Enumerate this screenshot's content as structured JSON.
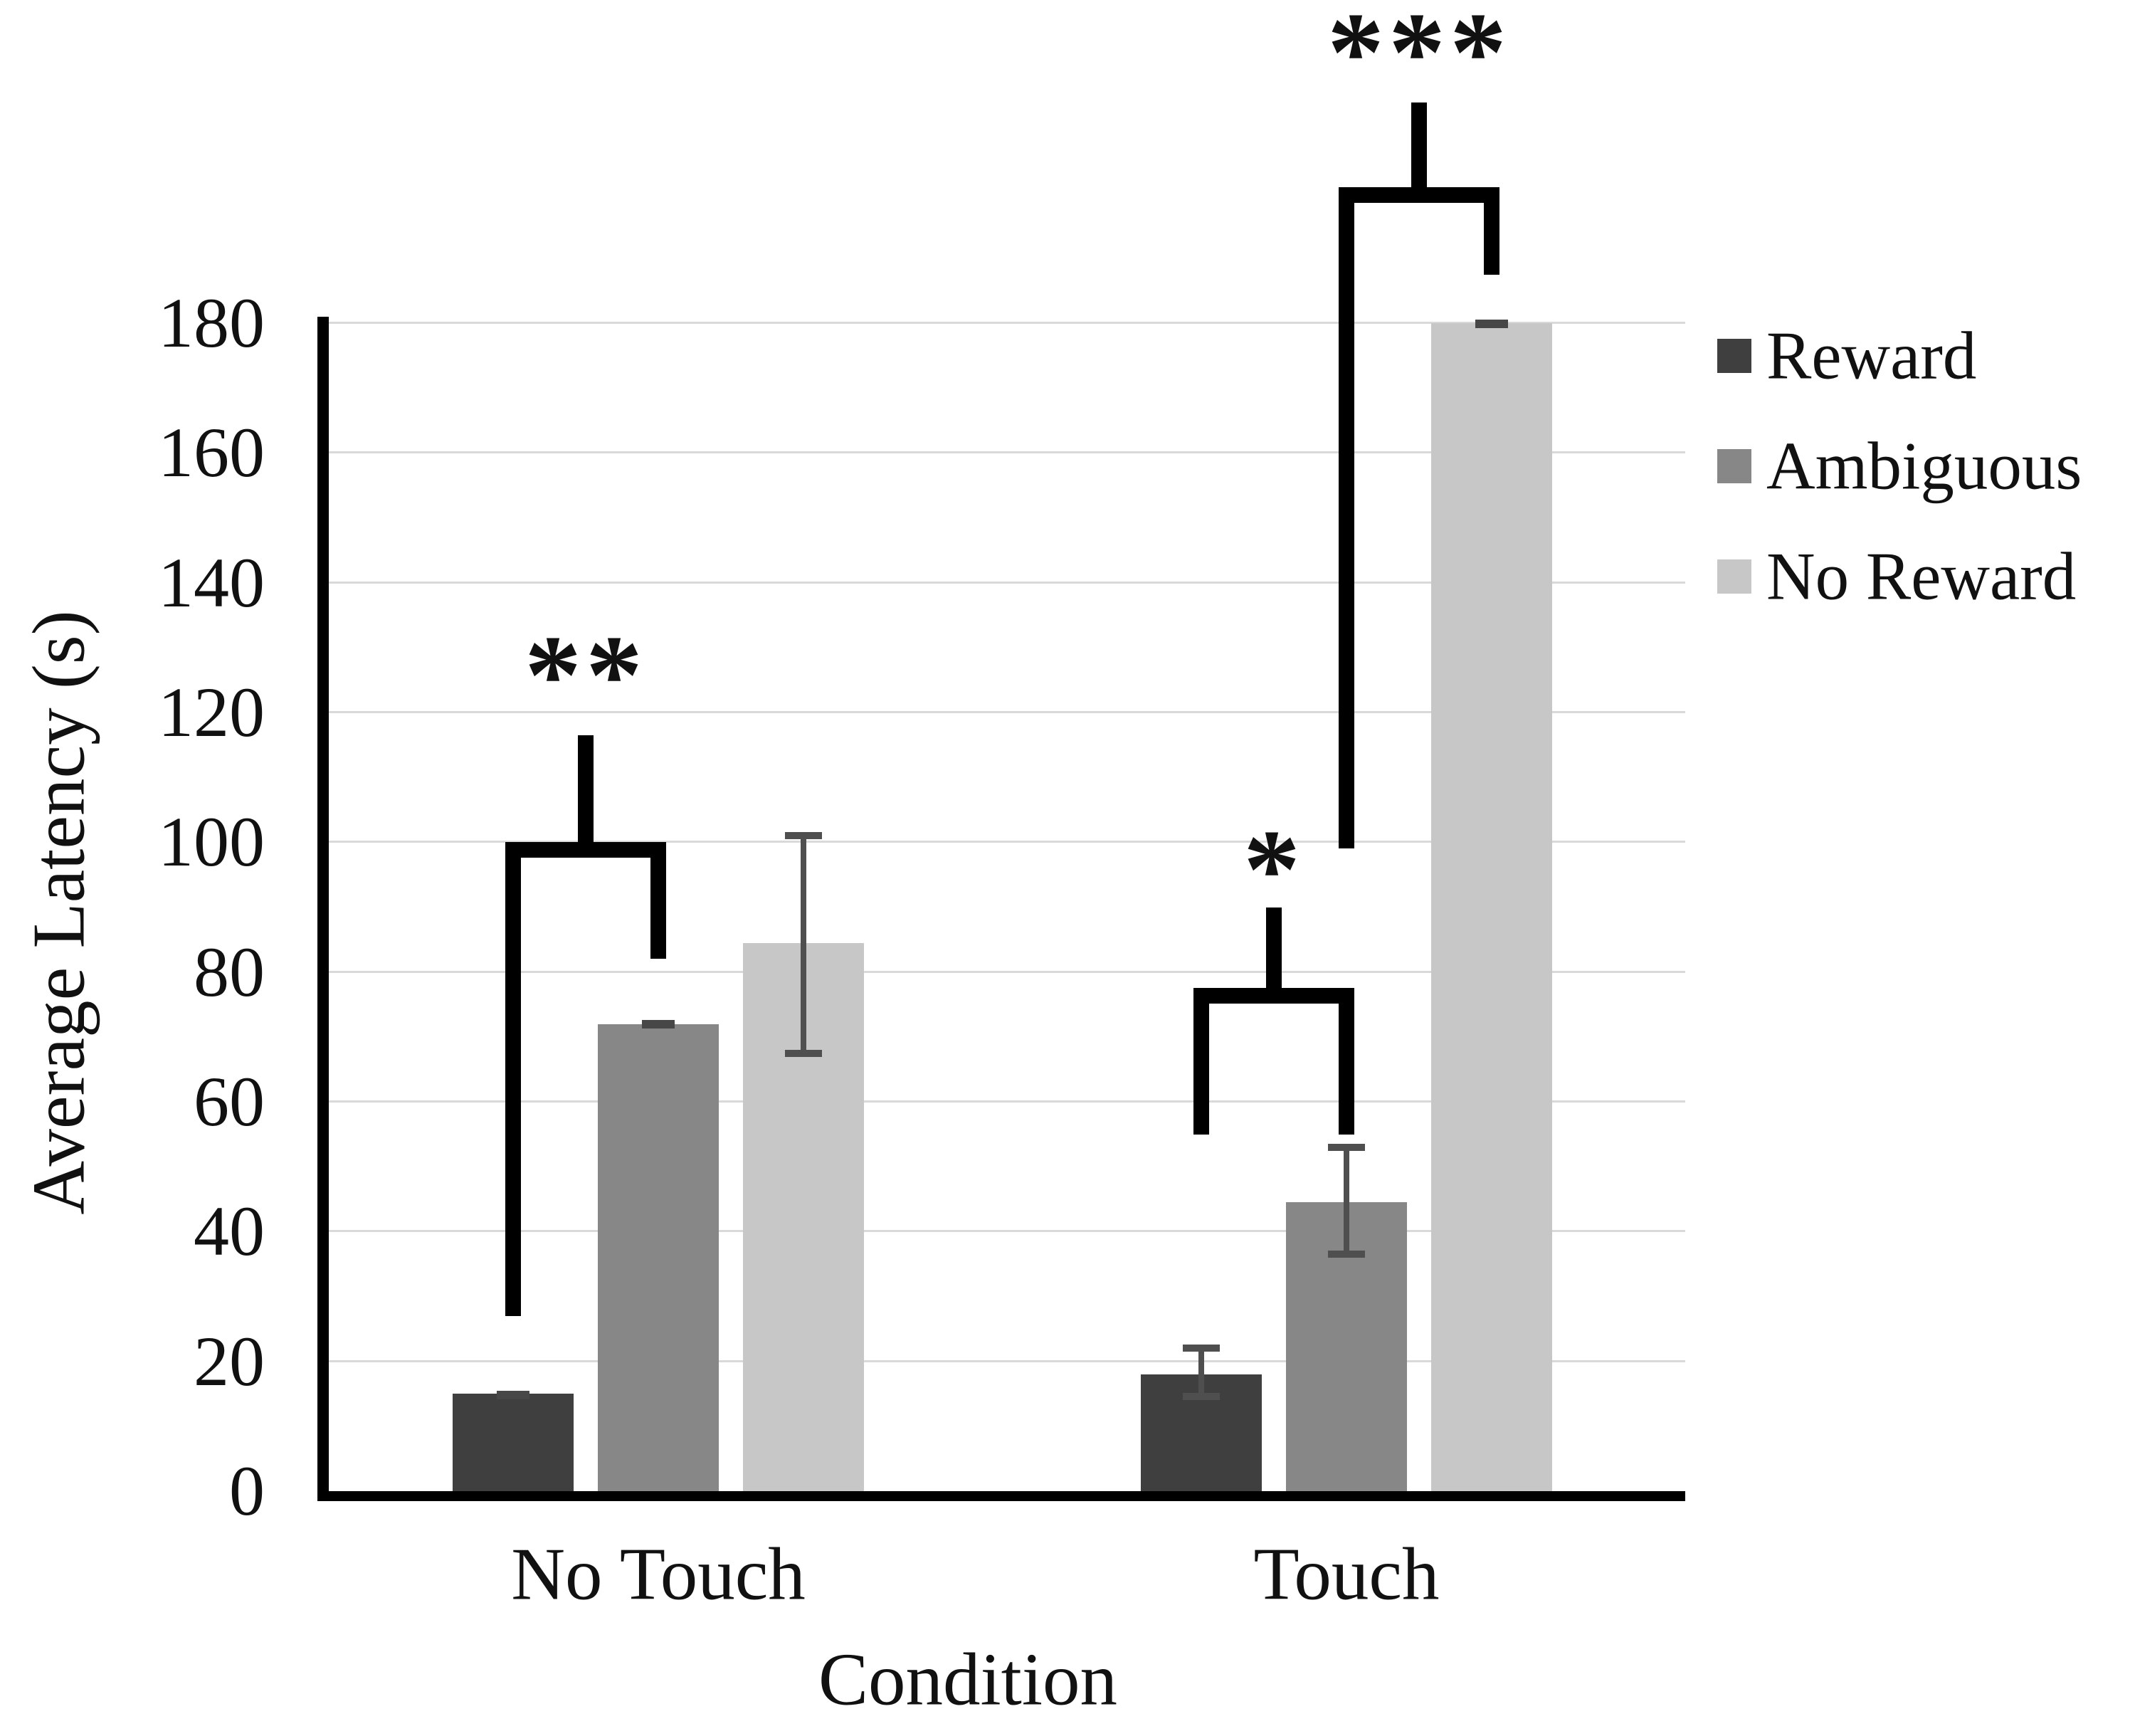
{
  "chart_data": {
    "type": "bar",
    "title": "",
    "ylabel": "Average Latency (s)",
    "xlabel": "Condition",
    "ylim": [
      0,
      180
    ],
    "yticks": [
      0,
      20,
      40,
      60,
      80,
      100,
      120,
      140,
      160,
      180
    ],
    "grid": "horizontal light-gray gridlines at every 20 units",
    "legend_position": "right",
    "categories": [
      "No Touch",
      "Touch"
    ],
    "series": [
      {
        "name": "Reward",
        "color": "#3f3f3f",
        "values": [
          15,
          18
        ],
        "error_low": [
          13.7,
          14.6
        ],
        "error_high": [
          15.9,
          22.1
        ]
      },
      {
        "name": "Ambiguous",
        "color": "#878787",
        "values": [
          72,
          44.5
        ],
        "error_low": [
          71.2,
          36.5
        ],
        "error_high": [
          72.7,
          53
        ]
      },
      {
        "name": "No Reward",
        "color": "#c7c7c7",
        "values": [
          84.5,
          180
        ],
        "error_low": [
          67.5,
          179.4
        ],
        "error_high": [
          101,
          180.3
        ]
      }
    ],
    "error_bar_color": "#4f4f4f",
    "significance_brackets": [
      {
        "label": "**",
        "category": "No Touch",
        "between": [
          "Reward",
          "Ambiguous"
        ],
        "bar_y": 100,
        "stem_top_y": 116.5,
        "left_leg_bottom_y": 27,
        "right_leg_bottom_y": 82,
        "label_y": 129
      },
      {
        "label": "*",
        "category": "Touch",
        "between": [
          "Reward",
          "Ambiguous"
        ],
        "bar_y": 77.5,
        "stem_top_y": 90,
        "left_leg_bottom_y": 55,
        "right_leg_bottom_y": 55,
        "label_y": 99
      },
      {
        "label": "***",
        "category": "Touch",
        "between": [
          "Ambiguous",
          "No Reward"
        ],
        "bar_y": 201,
        "stem_top_y": 214,
        "left_leg_bottom_y": 99,
        "right_leg_bottom_y": 187.5,
        "label_y": 225
      }
    ],
    "legend": [
      {
        "label": "Reward",
        "color": "#3f3f3f"
      },
      {
        "label": "Ambiguous",
        "color": "#878787"
      },
      {
        "label": "No Reward",
        "color": "#c7c7c7"
      }
    ]
  }
}
